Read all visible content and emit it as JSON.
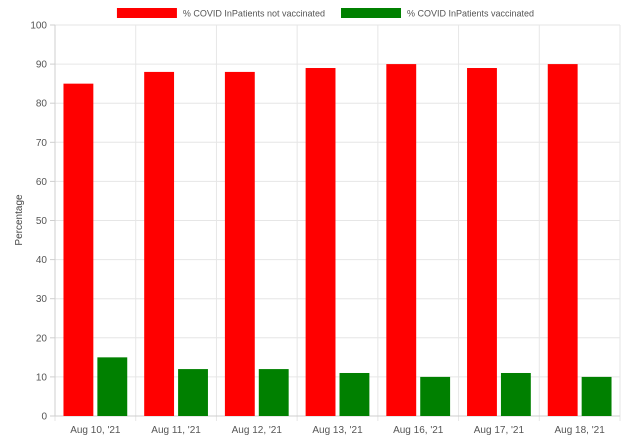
{
  "chart_data": {
    "type": "bar",
    "categories": [
      "Aug 10, '21",
      "Aug 11, '21",
      "Aug 12, '21",
      "Aug 13, '21",
      "Aug 16, '21",
      "Aug 17, '21",
      "Aug 18, '21"
    ],
    "series": [
      {
        "name": "% COVID InPatients not vaccinated",
        "color": "#ff0000",
        "values": [
          85,
          88,
          88,
          89,
          90,
          89,
          90
        ]
      },
      {
        "name": "% COVID InPatients vaccinated",
        "color": "#008000",
        "values": [
          15,
          12,
          12,
          11,
          10,
          11,
          10
        ]
      }
    ],
    "title": "",
    "xlabel": "",
    "ylabel": "Percentage",
    "ylim": [
      0,
      100
    ],
    "yticks": [
      0,
      10,
      20,
      30,
      40,
      50,
      60,
      70,
      80,
      90,
      100
    ],
    "grid": true,
    "legend_position": "top-center"
  }
}
